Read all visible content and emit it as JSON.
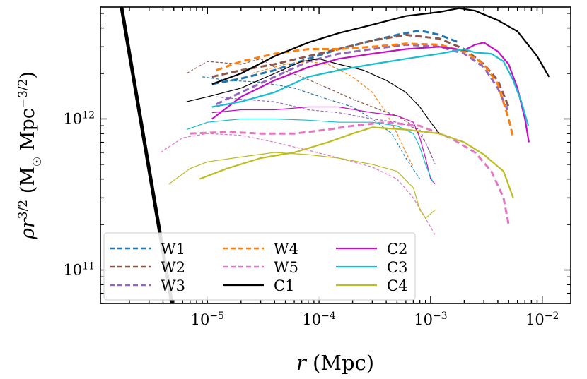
{
  "chart_data": {
    "type": "line",
    "x_scale": "log",
    "y_scale": "log",
    "xlabel": "r (Mpc)",
    "ylabel": "ρr^{3/2} (M☉ Mpc^{−3/2})",
    "xlim": [
      1.1e-06,
      0.018
    ],
    "ylim": [
      60000000000.0,
      5500000000000.0
    ],
    "x_ticks": [
      {
        "value": 1e-05,
        "base": "10",
        "exp": "−5"
      },
      {
        "value": 0.0001,
        "base": "10",
        "exp": "−4"
      },
      {
        "value": 0.001,
        "base": "10",
        "exp": "−3"
      },
      {
        "value": 0.01,
        "base": "10",
        "exp": "−2"
      }
    ],
    "y_ticks": [
      {
        "value": 100000000000.0,
        "base": "10",
        "exp": "11"
      },
      {
        "value": 1000000000000.0,
        "base": "10",
        "exp": "12"
      }
    ],
    "legend_position": "lower-left",
    "legend_order": [
      "W1",
      "W2",
      "W3",
      "W4",
      "W5",
      "C1",
      "C2",
      "C3",
      "C4"
    ],
    "reference_line": {
      "color": "#000000",
      "points": [
        [
          1.7e-06,
          5500000000000.0
        ],
        [
          4.8e-06,
          60000000000.0
        ]
      ]
    },
    "series": [
      {
        "name": "W1",
        "color": "#1f77b4",
        "dash": "dashed",
        "points": [
          [
            1.1e-05,
            1700000000000.0
          ],
          [
            2e-05,
            1850000000000.0
          ],
          [
            4e-05,
            2100000000000.0
          ],
          [
            8e-05,
            2500000000000.0
          ],
          [
            0.00015,
            2900000000000.0
          ],
          [
            0.0003,
            3300000000000.0
          ],
          [
            0.0005,
            3600000000000.0
          ],
          [
            0.0008,
            3850000000000.0
          ],
          [
            0.0012,
            3600000000000.0
          ],
          [
            0.0018,
            3200000000000.0
          ]
        ]
      },
      {
        "name": "W1 (inner)",
        "color": "#1f77b4",
        "dash": "dashed-thin",
        "points": [
          [
            9e-06,
            1900000000000.0
          ],
          [
            1.5e-05,
            1800000000000.0
          ],
          [
            3e-05,
            1750000000000.0
          ],
          [
            6e-05,
            1600000000000.0
          ],
          [
            0.00012,
            1350000000000.0
          ],
          [
            0.0002,
            1200000000000.0
          ],
          [
            0.0003,
            1000000000000.0
          ],
          [
            0.00045,
            800000000000.0
          ],
          [
            0.0006,
            550000000000.0
          ],
          [
            0.0008,
            400000000000.0
          ]
        ]
      },
      {
        "name": "W2",
        "color": "#8c564b",
        "dash": "dashed",
        "points": [
          [
            1.1e-05,
            1900000000000.0
          ],
          [
            2e-05,
            2100000000000.0
          ],
          [
            4e-05,
            2300000000000.0
          ],
          [
            8e-05,
            2600000000000.0
          ],
          [
            0.00015,
            2900000000000.0
          ],
          [
            0.0003,
            3300000000000.0
          ],
          [
            0.0006,
            3600000000000.0
          ],
          [
            0.0012,
            3400000000000.0
          ],
          [
            0.002,
            2900000000000.0
          ],
          [
            0.003,
            2300000000000.0
          ],
          [
            0.004,
            1800000000000.0
          ],
          [
            0.005,
            1200000000000.0
          ]
        ]
      },
      {
        "name": "W2 (inner)",
        "color": "#8c564b",
        "dash": "dashed-thin",
        "points": [
          [
            6.5e-06,
            2000000000000.0
          ],
          [
            1e-05,
            2400000000000.0
          ],
          [
            2e-05,
            2300000000000.0
          ],
          [
            3e-05,
            2500000000000.0
          ],
          [
            4e-05,
            2200000000000.0
          ],
          [
            7e-05,
            1900000000000.0
          ],
          [
            0.00012,
            1600000000000.0
          ],
          [
            0.0002,
            1350000000000.0
          ],
          [
            0.00035,
            1150000000000.0
          ],
          [
            0.0005,
            1050000000000.0
          ],
          [
            0.0007,
            900000000000.0
          ],
          [
            0.0009,
            700000000000.0
          ],
          [
            0.0011,
            500000000000.0
          ]
        ]
      },
      {
        "name": "W3",
        "color": "#9467bd",
        "dash": "dashed",
        "points": [
          [
            1.2e-05,
            1250000000000.0
          ],
          [
            2e-05,
            1500000000000.0
          ],
          [
            4e-05,
            1900000000000.0
          ],
          [
            8e-05,
            2400000000000.0
          ],
          [
            0.00015,
            2700000000000.0
          ],
          [
            0.0003,
            2900000000000.0
          ],
          [
            0.0006,
            3100000000000.0
          ],
          [
            0.0012,
            3000000000000.0
          ],
          [
            0.002,
            2700000000000.0
          ],
          [
            0.003,
            2200000000000.0
          ],
          [
            0.004,
            1600000000000.0
          ],
          [
            0.005,
            1100000000000.0
          ]
        ]
      },
      {
        "name": "W3 (inner)",
        "color": "#9467bd",
        "dash": "dashed-thin",
        "points": [
          [
            1.2e-05,
            1400000000000.0
          ],
          [
            2e-05,
            1350000000000.0
          ],
          [
            4e-05,
            1300000000000.0
          ],
          [
            8e-05,
            1150000000000.0
          ],
          [
            0.00015,
            1100000000000.0
          ],
          [
            0.0003,
            1000000000000.0
          ],
          [
            0.0005,
            950000000000.0
          ],
          [
            0.0008,
            850000000000.0
          ],
          [
            0.0011,
            500000000000.0
          ]
        ]
      },
      {
        "name": "W4",
        "color": "#ff7f0e",
        "dash": "dashed",
        "points": [
          [
            1.2e-05,
            2100000000000.0
          ],
          [
            2e-05,
            2400000000000.0
          ],
          [
            4e-05,
            2700000000000.0
          ],
          [
            8e-05,
            2900000000000.0
          ],
          [
            0.00015,
            2900000000000.0
          ],
          [
            0.0003,
            3000000000000.0
          ],
          [
            0.0006,
            3150000000000.0
          ],
          [
            0.0012,
            3100000000000.0
          ],
          [
            0.002,
            2800000000000.0
          ],
          [
            0.003,
            2300000000000.0
          ],
          [
            0.004,
            1700000000000.0
          ],
          [
            0.005,
            1000000000000.0
          ],
          [
            0.0055,
            750000000000.0
          ]
        ]
      },
      {
        "name": "W4 (inner)",
        "color": "#ff7f0e",
        "dash": "dashed-thin",
        "points": [
          [
            2.5e-05,
            2000000000000.0
          ],
          [
            5e-05,
            2300000000000.0
          ],
          [
            8e-05,
            2400000000000.0
          ],
          [
            0.00012,
            2300000000000.0
          ],
          [
            0.0002,
            1900000000000.0
          ],
          [
            0.0003,
            1500000000000.0
          ],
          [
            0.0004,
            1100000000000.0
          ],
          [
            0.0005,
            800000000000.0
          ],
          [
            0.0006,
            600000000000.0
          ],
          [
            0.0007,
            480000000000.0
          ]
        ]
      },
      {
        "name": "W5",
        "color": "#e377c2",
        "dash": "dashed",
        "points": [
          [
            7e-06,
            800000000000.0
          ],
          [
            1.5e-05,
            820000000000.0
          ],
          [
            3e-05,
            800000000000.0
          ],
          [
            6e-05,
            800000000000.0
          ],
          [
            0.00012,
            850000000000.0
          ],
          [
            0.0002,
            900000000000.0
          ],
          [
            0.0004,
            950000000000.0
          ],
          [
            0.0008,
            900000000000.0
          ],
          [
            0.0015,
            750000000000.0
          ],
          [
            0.0025,
            600000000000.0
          ],
          [
            0.0035,
            450000000000.0
          ],
          [
            0.0045,
            300000000000.0
          ],
          [
            0.005,
            200000000000.0
          ]
        ]
      },
      {
        "name": "W5 (inner)",
        "color": "#e377c2",
        "dash": "dashed-thin",
        "points": [
          [
            3.8e-06,
            600000000000.0
          ],
          [
            6e-06,
            750000000000.0
          ],
          [
            1e-05,
            800000000000.0
          ],
          [
            2e-05,
            780000000000.0
          ],
          [
            4e-05,
            700000000000.0
          ],
          [
            8e-05,
            620000000000.0
          ],
          [
            0.00015,
            550000000000.0
          ],
          [
            0.0003,
            480000000000.0
          ],
          [
            0.0005,
            400000000000.0
          ],
          [
            0.0007,
            300000000000.0
          ],
          [
            0.0009,
            220000000000.0
          ],
          [
            0.0011,
            170000000000.0
          ]
        ]
      },
      {
        "name": "C1",
        "color": "#000000",
        "dash": "solid",
        "points": [
          [
            1.1e-05,
            1700000000000.0
          ],
          [
            2e-05,
            2000000000000.0
          ],
          [
            4e-05,
            2600000000000.0
          ],
          [
            8e-05,
            3200000000000.0
          ],
          [
            0.00015,
            3700000000000.0
          ],
          [
            0.0003,
            4200000000000.0
          ],
          [
            0.0006,
            4800000000000.0
          ],
          [
            0.0012,
            5100000000000.0
          ],
          [
            0.0018,
            5400000000000.0
          ],
          [
            0.0025,
            5200000000000.0
          ],
          [
            0.004,
            4500000000000.0
          ],
          [
            0.006,
            3800000000000.0
          ],
          [
            0.009,
            2600000000000.0
          ],
          [
            0.0115,
            1900000000000.0
          ]
        ]
      },
      {
        "name": "C1 (inner)",
        "color": "#000000",
        "dash": "solid-thin",
        "points": [
          [
            6.5e-06,
            1300000000000.0
          ],
          [
            1e-05,
            1400000000000.0
          ],
          [
            2e-05,
            1600000000000.0
          ],
          [
            4e-05,
            2000000000000.0
          ],
          [
            7e-05,
            2400000000000.0
          ],
          [
            0.0001,
            2500000000000.0
          ],
          [
            0.00015,
            2300000000000.0
          ],
          [
            0.00025,
            2100000000000.0
          ],
          [
            0.0004,
            1800000000000.0
          ],
          [
            0.0006,
            1500000000000.0
          ],
          [
            0.0008,
            1200000000000.0
          ],
          [
            0.001,
            950000000000.0
          ],
          [
            0.0012,
            800000000000.0
          ]
        ]
      },
      {
        "name": "C2",
        "color": "#c40fc4",
        "dash": "solid",
        "points": [
          [
            1.1e-05,
            1000000000000.0
          ],
          [
            2e-05,
            1400000000000.0
          ],
          [
            4e-05,
            1800000000000.0
          ],
          [
            8e-05,
            2200000000000.0
          ],
          [
            0.00015,
            2500000000000.0
          ],
          [
            0.0003,
            2700000000000.0
          ],
          [
            0.0006,
            2900000000000.0
          ],
          [
            0.0012,
            3000000000000.0
          ],
          [
            0.002,
            2850000000000.0
          ],
          [
            0.0025,
            3100000000000.0
          ],
          [
            0.003,
            3200000000000.0
          ],
          [
            0.004,
            2800000000000.0
          ],
          [
            0.005,
            2300000000000.0
          ],
          [
            0.006,
            1600000000000.0
          ],
          [
            0.007,
            1000000000000.0
          ],
          [
            0.0076,
            700000000000.0
          ]
        ]
      },
      {
        "name": "C2 (inner)",
        "color": "#c40fc4",
        "dash": "solid-thin",
        "points": [
          [
            1.1e-05,
            1100000000000.0
          ],
          [
            2e-05,
            1150000000000.0
          ],
          [
            4e-05,
            1150000000000.0
          ],
          [
            8e-05,
            1200000000000.0
          ],
          [
            0.00015,
            1200000000000.0
          ],
          [
            0.0003,
            1100000000000.0
          ],
          [
            0.0005,
            1050000000000.0
          ],
          [
            0.0007,
            950000000000.0
          ],
          [
            0.0008,
            750000000000.0
          ],
          [
            0.0009,
            550000000000.0
          ],
          [
            0.001,
            400000000000.0
          ],
          [
            0.0011,
            370000000000.0
          ]
        ]
      },
      {
        "name": "C3",
        "color": "#17becf",
        "dash": "solid",
        "points": [
          [
            1.1e-05,
            1200000000000.0
          ],
          [
            2e-05,
            1300000000000.0
          ],
          [
            4e-05,
            1500000000000.0
          ],
          [
            8e-05,
            1900000000000.0
          ],
          [
            0.00015,
            2100000000000.0
          ],
          [
            0.0003,
            2300000000000.0
          ],
          [
            0.0006,
            2500000000000.0
          ],
          [
            0.0012,
            2700000000000.0
          ],
          [
            0.002,
            2900000000000.0
          ],
          [
            0.0025,
            2750000000000.0
          ],
          [
            0.0035,
            2700000000000.0
          ],
          [
            0.0045,
            2400000000000.0
          ],
          [
            0.0055,
            1800000000000.0
          ],
          [
            0.0065,
            1300000000000.0
          ],
          [
            0.0075,
            900000000000.0
          ]
        ]
      },
      {
        "name": "C3 (inner)",
        "color": "#17becf",
        "dash": "solid-thin",
        "points": [
          [
            6.5e-06,
            850000000000.0
          ],
          [
            1e-05,
            950000000000.0
          ],
          [
            2e-05,
            1000000000000.0
          ],
          [
            4e-05,
            1000000000000.0
          ],
          [
            8e-05,
            980000000000.0
          ],
          [
            0.00015,
            950000000000.0
          ],
          [
            0.0003,
            950000000000.0
          ],
          [
            0.0005,
            900000000000.0
          ],
          [
            0.0007,
            800000000000.0
          ],
          [
            0.0008,
            650000000000.0
          ],
          [
            0.0009,
            500000000000.0
          ],
          [
            0.00105,
            380000000000.0
          ]
        ]
      },
      {
        "name": "C4",
        "color": "#bcbd22",
        "dash": "solid",
        "points": [
          [
            8.5e-06,
            400000000000.0
          ],
          [
            1.5e-05,
            470000000000.0
          ],
          [
            3e-05,
            550000000000.0
          ],
          [
            6e-05,
            600000000000.0
          ],
          [
            0.00012,
            700000000000.0
          ],
          [
            0.0002,
            800000000000.0
          ],
          [
            0.0003,
            880000000000.0
          ],
          [
            0.0006,
            850000000000.0
          ],
          [
            0.0012,
            800000000000.0
          ],
          [
            0.002,
            700000000000.0
          ],
          [
            0.003,
            580000000000.0
          ],
          [
            0.0045,
            450000000000.0
          ],
          [
            0.0055,
            300000000000.0
          ]
        ]
      },
      {
        "name": "C4 (inner)",
        "color": "#bcbd22",
        "dash": "solid-thin",
        "points": [
          [
            4.5e-06,
            370000000000.0
          ],
          [
            7e-06,
            470000000000.0
          ],
          [
            1e-05,
            520000000000.0
          ],
          [
            2e-05,
            560000000000.0
          ],
          [
            4e-05,
            600000000000.0
          ],
          [
            8e-05,
            580000000000.0
          ],
          [
            0.00015,
            550000000000.0
          ],
          [
            0.0003,
            500000000000.0
          ],
          [
            0.0005,
            450000000000.0
          ],
          [
            0.0007,
            350000000000.0
          ],
          [
            0.0008,
            250000000000.0
          ],
          [
            0.0009,
            220000000000.0
          ],
          [
            0.0011,
            250000000000.0
          ]
        ]
      }
    ]
  }
}
